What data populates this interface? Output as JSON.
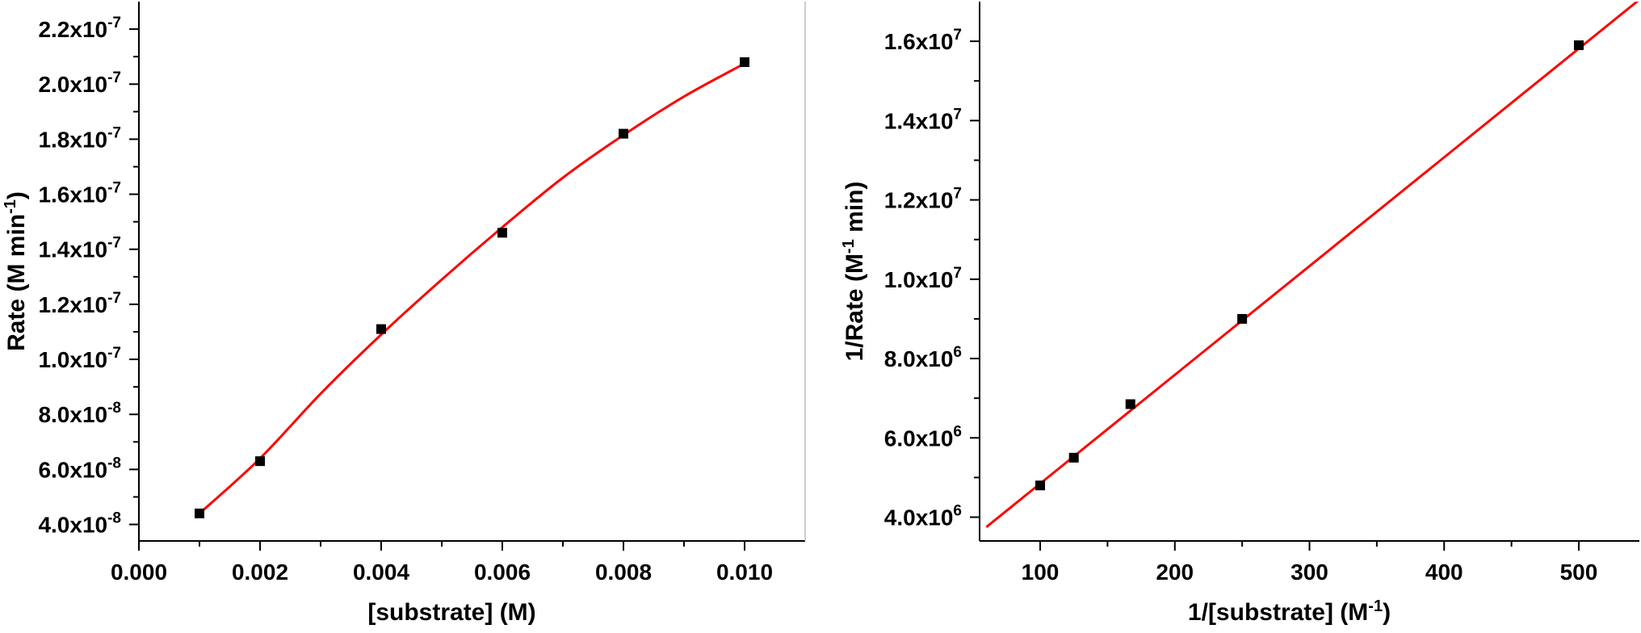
{
  "chart_data": [
    {
      "type": "scatter",
      "title": "",
      "xlabel": "[substrate] (M)",
      "ylabel": {
        "base": "Rate (M min",
        "sup": "-1",
        "tail": ")"
      },
      "xlim": [
        0,
        0.011
      ],
      "ylim": [
        3.4e-08,
        2.3e-07
      ],
      "x_ticks": [
        {
          "value": 0.0,
          "label": "0.000"
        },
        {
          "value": 0.002,
          "label": "0.002"
        },
        {
          "value": 0.004,
          "label": "0.004"
        },
        {
          "value": 0.006,
          "label": "0.006"
        },
        {
          "value": 0.008,
          "label": "0.008"
        },
        {
          "value": 0.01,
          "label": "0.010"
        }
      ],
      "y_ticks": [
        {
          "value": 4e-08,
          "mant": "4.0x10",
          "exp": "-8"
        },
        {
          "value": 6e-08,
          "mant": "6.0x10",
          "exp": "-8"
        },
        {
          "value": 8e-08,
          "mant": "8.0x10",
          "exp": "-8"
        },
        {
          "value": 1e-07,
          "mant": "1.0x10",
          "exp": "-7"
        },
        {
          "value": 1.2e-07,
          "mant": "1.2x10",
          "exp": "-7"
        },
        {
          "value": 1.4e-07,
          "mant": "1.4x10",
          "exp": "-7"
        },
        {
          "value": 1.6e-07,
          "mant": "1.6x10",
          "exp": "-7"
        },
        {
          "value": 1.8e-07,
          "mant": "1.8x10",
          "exp": "-7"
        },
        {
          "value": 2e-07,
          "mant": "2.0x10",
          "exp": "-7"
        },
        {
          "value": 2.2e-07,
          "mant": "2.2x10",
          "exp": "-7"
        }
      ],
      "series": [
        {
          "kind": "points",
          "x": [
            0.001,
            0.002,
            0.004,
            0.006,
            0.008,
            0.01
          ],
          "y": [
            4.4e-08,
            6.3e-08,
            1.11e-07,
            1.46e-07,
            1.82e-07,
            2.08e-07
          ]
        },
        {
          "kind": "fit-curve",
          "x": [
            0.001,
            0.002,
            0.003,
            0.004,
            0.005,
            0.006,
            0.007,
            0.008,
            0.009,
            0.01
          ],
          "y": [
            4.4e-08,
            6.4e-08,
            8.75e-08,
            1.09e-07,
            1.29e-07,
            1.48e-07,
            1.66e-07,
            1.815e-07,
            1.955e-07,
            2.075e-07
          ]
        }
      ],
      "grid": false,
      "colors": {
        "points": "#000000",
        "fit": "#ff0000"
      }
    },
    {
      "type": "scatter",
      "title": "",
      "xlabel": {
        "base": "1/[substrate] (M",
        "sup": "-1",
        "tail": ")"
      },
      "ylabel": {
        "base": "1/Rate (M",
        "sup": "-1",
        "tail": " min)"
      },
      "xlim": [
        55,
        545
      ],
      "ylim": [
        3400000.0,
        17000000.0
      ],
      "x_ticks": [
        {
          "value": 100,
          "label": "100"
        },
        {
          "value": 200,
          "label": "200"
        },
        {
          "value": 300,
          "label": "300"
        },
        {
          "value": 400,
          "label": "400"
        },
        {
          "value": 500,
          "label": "500"
        }
      ],
      "y_ticks": [
        {
          "value": 4000000.0,
          "mant": "4.0x10",
          "exp": "6"
        },
        {
          "value": 6000000.0,
          "mant": "6.0x10",
          "exp": "6"
        },
        {
          "value": 8000000.0,
          "mant": "8.0x10",
          "exp": "6"
        },
        {
          "value": 10000000.0,
          "mant": "1.0x10",
          "exp": "7"
        },
        {
          "value": 12000000.0,
          "mant": "1.2x10",
          "exp": "7"
        },
        {
          "value": 14000000.0,
          "mant": "1.4x10",
          "exp": "7"
        },
        {
          "value": 16000000.0,
          "mant": "1.6x10",
          "exp": "7"
        }
      ],
      "series": [
        {
          "kind": "points",
          "x": [
            100,
            125,
            167,
            250,
            500
          ],
          "y": [
            4800000.0,
            5500000.0,
            6850000.0,
            9000000.0,
            15900000.0
          ]
        },
        {
          "kind": "fit-line",
          "x": [
            60,
            545
          ],
          "y": [
            3750000.0,
            17050000.0
          ]
        }
      ],
      "grid": false,
      "colors": {
        "points": "#000000",
        "fit": "#ff0000"
      }
    }
  ]
}
